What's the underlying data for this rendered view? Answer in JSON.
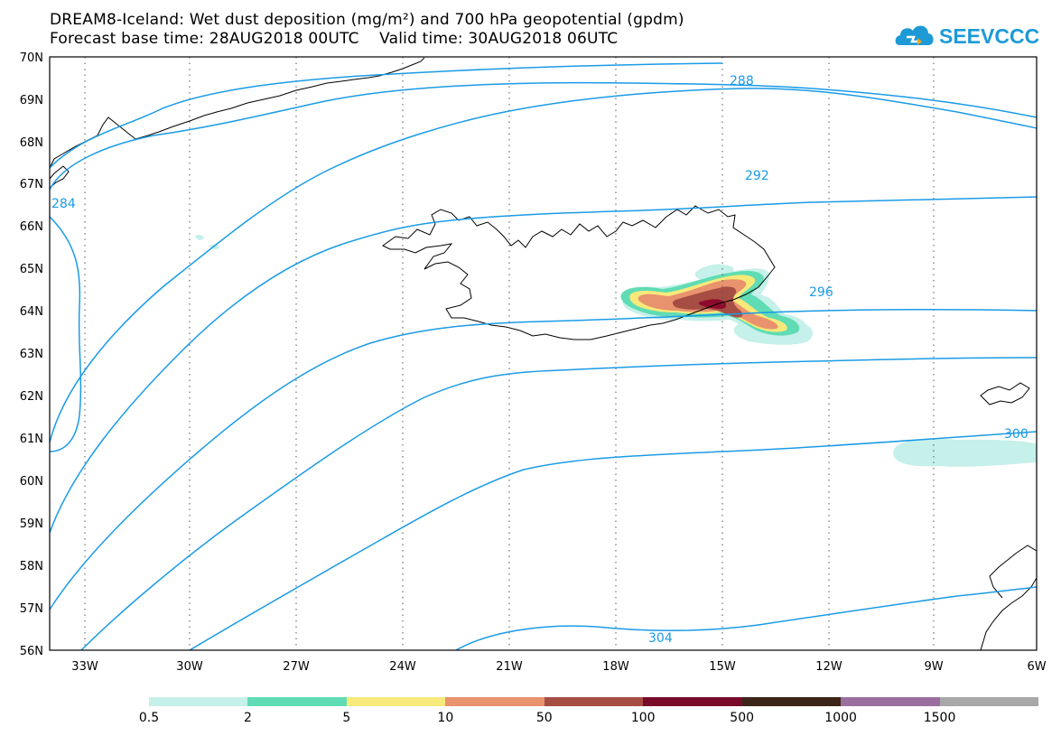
{
  "title": {
    "line1": "DREAM8-Iceland: Wet dust deposition (mg/m²) and 700 hPa geopotential (gpdm)",
    "line2": "Forecast base time: 28AUG2018 00UTC    Valid time: 30AUG2018 06UTC"
  },
  "logo": {
    "text": "SEEVCCC",
    "color": "#1d9ad6"
  },
  "map": {
    "lat_labels": [
      "70N",
      "69N",
      "68N",
      "67N",
      "66N",
      "65N",
      "64N",
      "63N",
      "62N",
      "61N",
      "60N",
      "59N",
      "58N",
      "57N",
      "56N"
    ],
    "lon_labels": [
      "33W",
      "30W",
      "27W",
      "24W",
      "21W",
      "18W",
      "15W",
      "12W",
      "9W",
      "6W"
    ],
    "contour_color": "#1a9be6",
    "contours": [
      {
        "label": "288"
      },
      {
        "label": "292"
      },
      {
        "label": "296"
      },
      {
        "label": "300"
      },
      {
        "label": "304"
      },
      {
        "label": "284"
      }
    ],
    "deposition_colors": [
      "#c6f0ea",
      "#5fdcb4",
      "#f7e97a",
      "#e9926e",
      "#a64d44",
      "#8e0a2c"
    ]
  },
  "legend": {
    "colors": [
      "#c6f0ea",
      "#5fdcb4",
      "#f7e97a",
      "#e9926e",
      "#a64d44",
      "#7a0a2a",
      "#3b2518",
      "#9a6fa0",
      "#a8a8a8"
    ],
    "labels": [
      "0.5",
      "2",
      "5",
      "10",
      "50",
      "100",
      "500",
      "1000",
      "1500"
    ]
  }
}
